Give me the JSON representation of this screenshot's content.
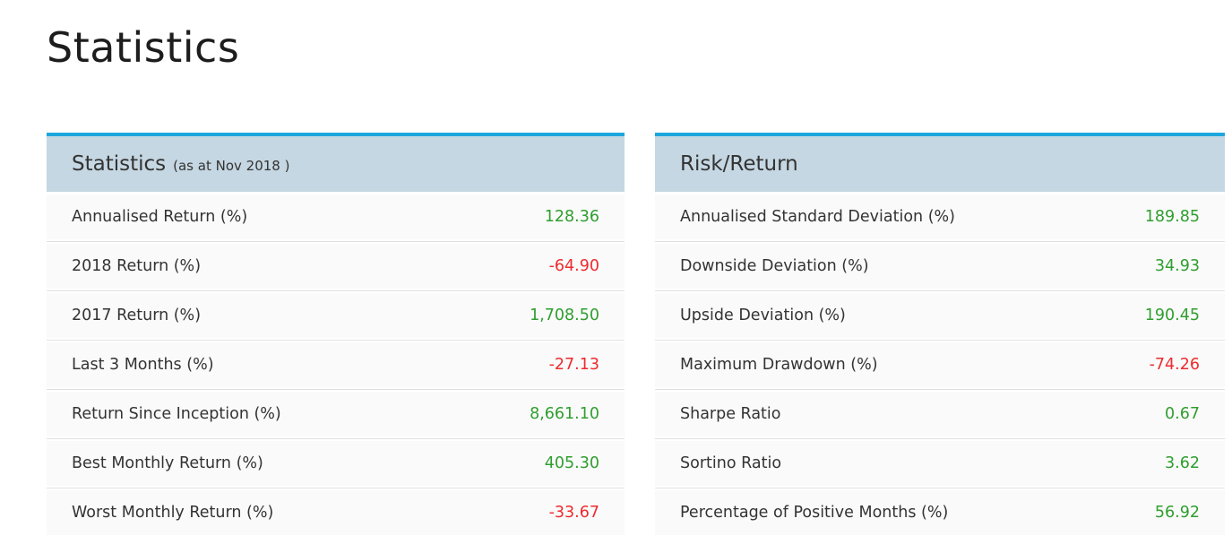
{
  "page": {
    "title": "Statistics"
  },
  "colors": {
    "accent_top_border": "#1ea7dd",
    "table_header_bg": "#c5d7e2",
    "row_bg": "#fafafa",
    "row_separator": "#e0e0e0",
    "positive_value": "#2f9e2f",
    "negative_value": "#ee2b2e",
    "label_text": "#333333"
  },
  "left_table": {
    "title": "Statistics",
    "subtitle": "(as at Nov 2018 )",
    "rows": [
      {
        "label": "Annualised Return (%)",
        "value": "128.36",
        "sign": "positive"
      },
      {
        "label": "2018 Return (%)",
        "value": "-64.90",
        "sign": "negative"
      },
      {
        "label": "2017 Return (%)",
        "value": "1,708.50",
        "sign": "positive"
      },
      {
        "label": "Last 3 Months (%)",
        "value": "-27.13",
        "sign": "negative"
      },
      {
        "label": "Return Since Inception (%)",
        "value": "8,661.10",
        "sign": "positive"
      },
      {
        "label": "Best Monthly Return (%)",
        "value": "405.30",
        "sign": "positive"
      },
      {
        "label": "Worst Monthly Return (%)",
        "value": "-33.67",
        "sign": "negative"
      }
    ]
  },
  "right_table": {
    "title": "Risk/Return",
    "rows": [
      {
        "label": "Annualised Standard Deviation (%)",
        "value": "189.85",
        "sign": "positive"
      },
      {
        "label": "Downside Deviation (%)",
        "value": "34.93",
        "sign": "positive"
      },
      {
        "label": "Upside Deviation (%)",
        "value": "190.45",
        "sign": "positive"
      },
      {
        "label": "Maximum Drawdown (%)",
        "value": "-74.26",
        "sign": "negative"
      },
      {
        "label": "Sharpe Ratio",
        "value": "0.67",
        "sign": "positive"
      },
      {
        "label": "Sortino Ratio",
        "value": "3.62",
        "sign": "positive"
      },
      {
        "label": "Percentage of Positive Months (%)",
        "value": "56.92",
        "sign": "positive"
      }
    ]
  }
}
